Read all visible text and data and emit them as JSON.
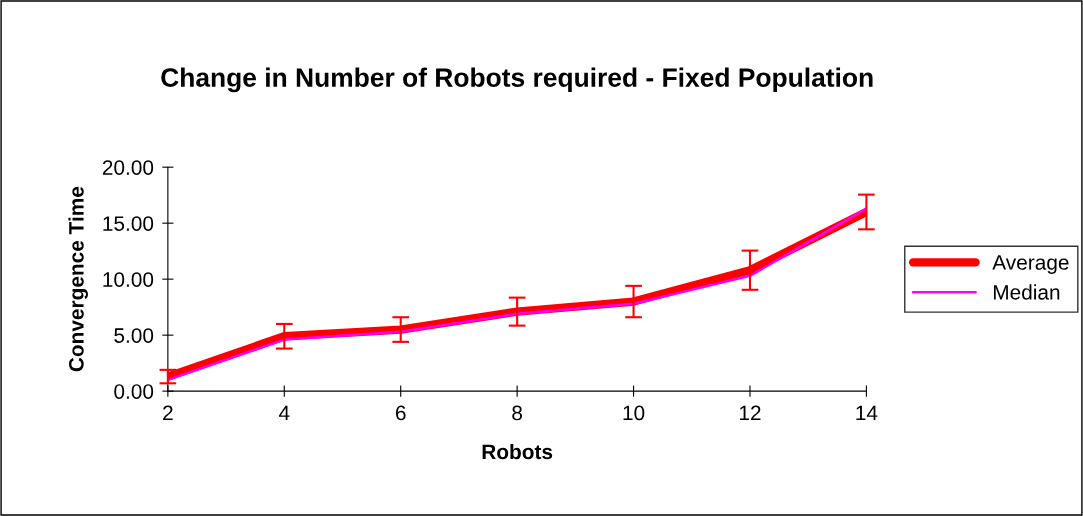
{
  "chart_data": {
    "type": "line",
    "title": "Change in Number of Robots required - Fixed Population",
    "xlabel": "Robots",
    "ylabel": "Convergence Time",
    "x": [
      2,
      4,
      6,
      8,
      10,
      12,
      14
    ],
    "series": [
      {
        "name": "Average",
        "color": "#ff0000",
        "values": [
          1.3,
          4.9,
          5.5,
          7.1,
          8.0,
          10.8,
          16.0
        ],
        "errors": [
          0.6,
          1.1,
          1.1,
          1.25,
          1.4,
          1.75,
          1.55
        ]
      },
      {
        "name": "Median",
        "color": "#ff00ff",
        "values": [
          1.0,
          4.6,
          5.3,
          6.9,
          7.8,
          10.3,
          16.3
        ]
      }
    ],
    "xlim": [
      2,
      14
    ],
    "xticks": [
      2,
      4,
      6,
      8,
      10,
      12,
      14
    ],
    "ylim": [
      0,
      20
    ],
    "yticks": [
      {
        "value": 0,
        "label": "0.00"
      },
      {
        "value": 5,
        "label": "5.00"
      },
      {
        "value": 10,
        "label": "10.00"
      },
      {
        "value": 15,
        "label": "15.00"
      },
      {
        "value": 20,
        "label": "20.00"
      }
    ],
    "grid": false,
    "legend": "right",
    "marker": "none",
    "line_style": "solid"
  }
}
